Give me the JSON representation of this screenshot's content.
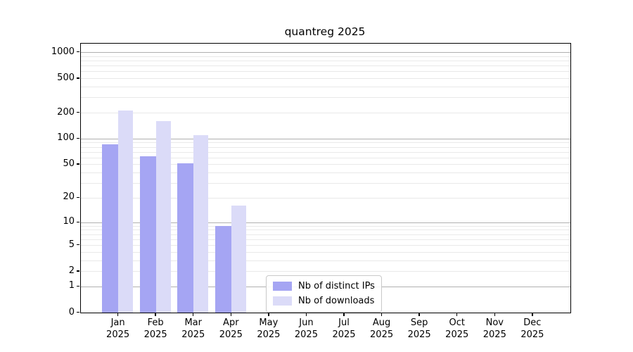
{
  "title": "quantreg 2025",
  "chart_data": {
    "type": "bar",
    "title": "quantreg 2025",
    "xlabel": "",
    "ylabel": "",
    "yscale": "log1p",
    "ylim": [
      0,
      1250
    ],
    "yticks": [
      0,
      1,
      2,
      5,
      10,
      20,
      50,
      100,
      200,
      500,
      1000
    ],
    "grid": {
      "major_lines": [
        1,
        10,
        100,
        1000
      ],
      "minor_multiples": [
        2,
        3,
        4,
        5,
        6,
        7,
        8,
        9
      ],
      "major_color": "#b0b0b0",
      "minor_color": "#e9e9e9"
    },
    "categories": [
      "Jan 2025",
      "Feb 2025",
      "Mar 2025",
      "Apr 2025",
      "May 2025",
      "Jun 2025",
      "Jul 2025",
      "Aug 2025",
      "Sep 2025",
      "Oct 2025",
      "Nov 2025",
      "Dec 2025"
    ],
    "series": [
      {
        "name": "Nb of distinct IPs",
        "color": "#a5a5f3",
        "values": [
          86,
          62,
          51,
          9,
          null,
          null,
          null,
          null,
          null,
          null,
          null,
          null
        ]
      },
      {
        "name": "Nb of downloads",
        "color": "#dbdbf8",
        "values": [
          210,
          160,
          110,
          16,
          null,
          null,
          null,
          null,
          null,
          null,
          null,
          null
        ]
      }
    ],
    "legend_position": "lower center"
  }
}
